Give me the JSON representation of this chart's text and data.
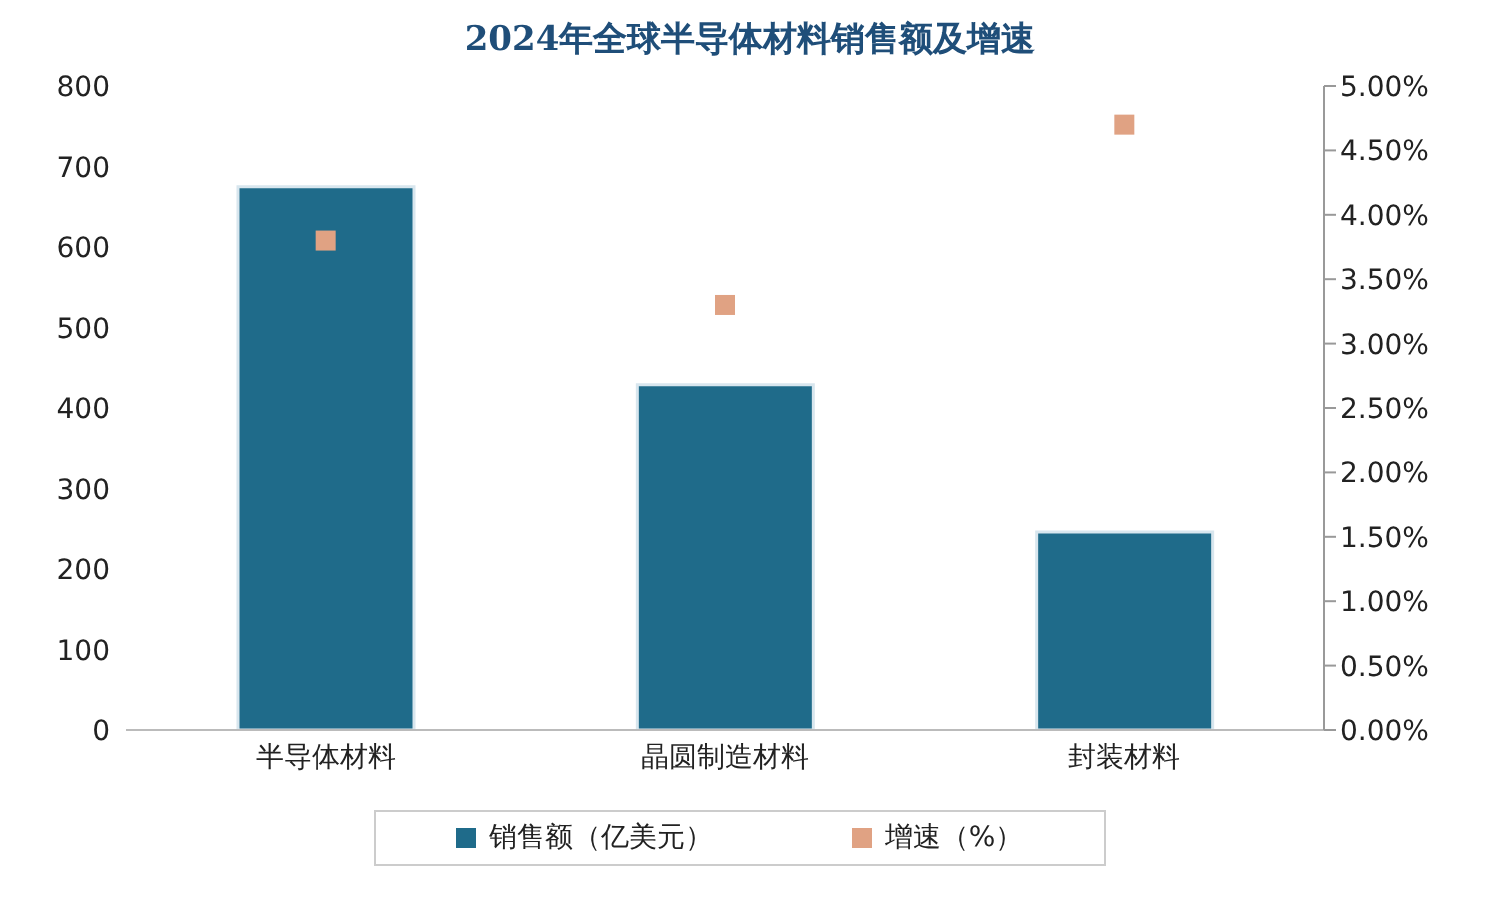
{
  "chart_data": {
    "type": "bar",
    "title": "2024年全球半导体材料销售额及增速",
    "categories": [
      "半导体材料",
      "晶圆制造材料",
      "封装材料"
    ],
    "series": [
      {
        "name": "销售额（亿美元）",
        "color": "#1f6b8a",
        "values": [
          675,
          429,
          246
        ]
      },
      {
        "name": "增速（%）",
        "type": "scatter",
        "axis": "y2",
        "color": "#e0a283",
        "values": [
          3.8,
          3.3,
          4.7
        ]
      }
    ],
    "ylim": [
      0,
      800
    ],
    "yticks": [
      0,
      100,
      200,
      300,
      400,
      500,
      600,
      700,
      800
    ],
    "y2lim": [
      0,
      5
    ],
    "y2ticks": [
      {
        "value": 0,
        "label": "0.00%"
      },
      {
        "value": 0.5,
        "label": "0.50%"
      },
      {
        "value": 1,
        "label": "1.00%"
      },
      {
        "value": 1.5,
        "label": "1.50%"
      },
      {
        "value": 2,
        "label": "2.00%"
      },
      {
        "value": 2.5,
        "label": "2.50%"
      },
      {
        "value": 3,
        "label": "3.00%"
      },
      {
        "value": 3.5,
        "label": "3.50%"
      },
      {
        "value": 4,
        "label": "4.00%"
      },
      {
        "value": 4.5,
        "label": "4.50%"
      },
      {
        "value": 5,
        "label": "5.00%"
      }
    ],
    "grid": false,
    "legend": "bottom",
    "marker": "square"
  }
}
